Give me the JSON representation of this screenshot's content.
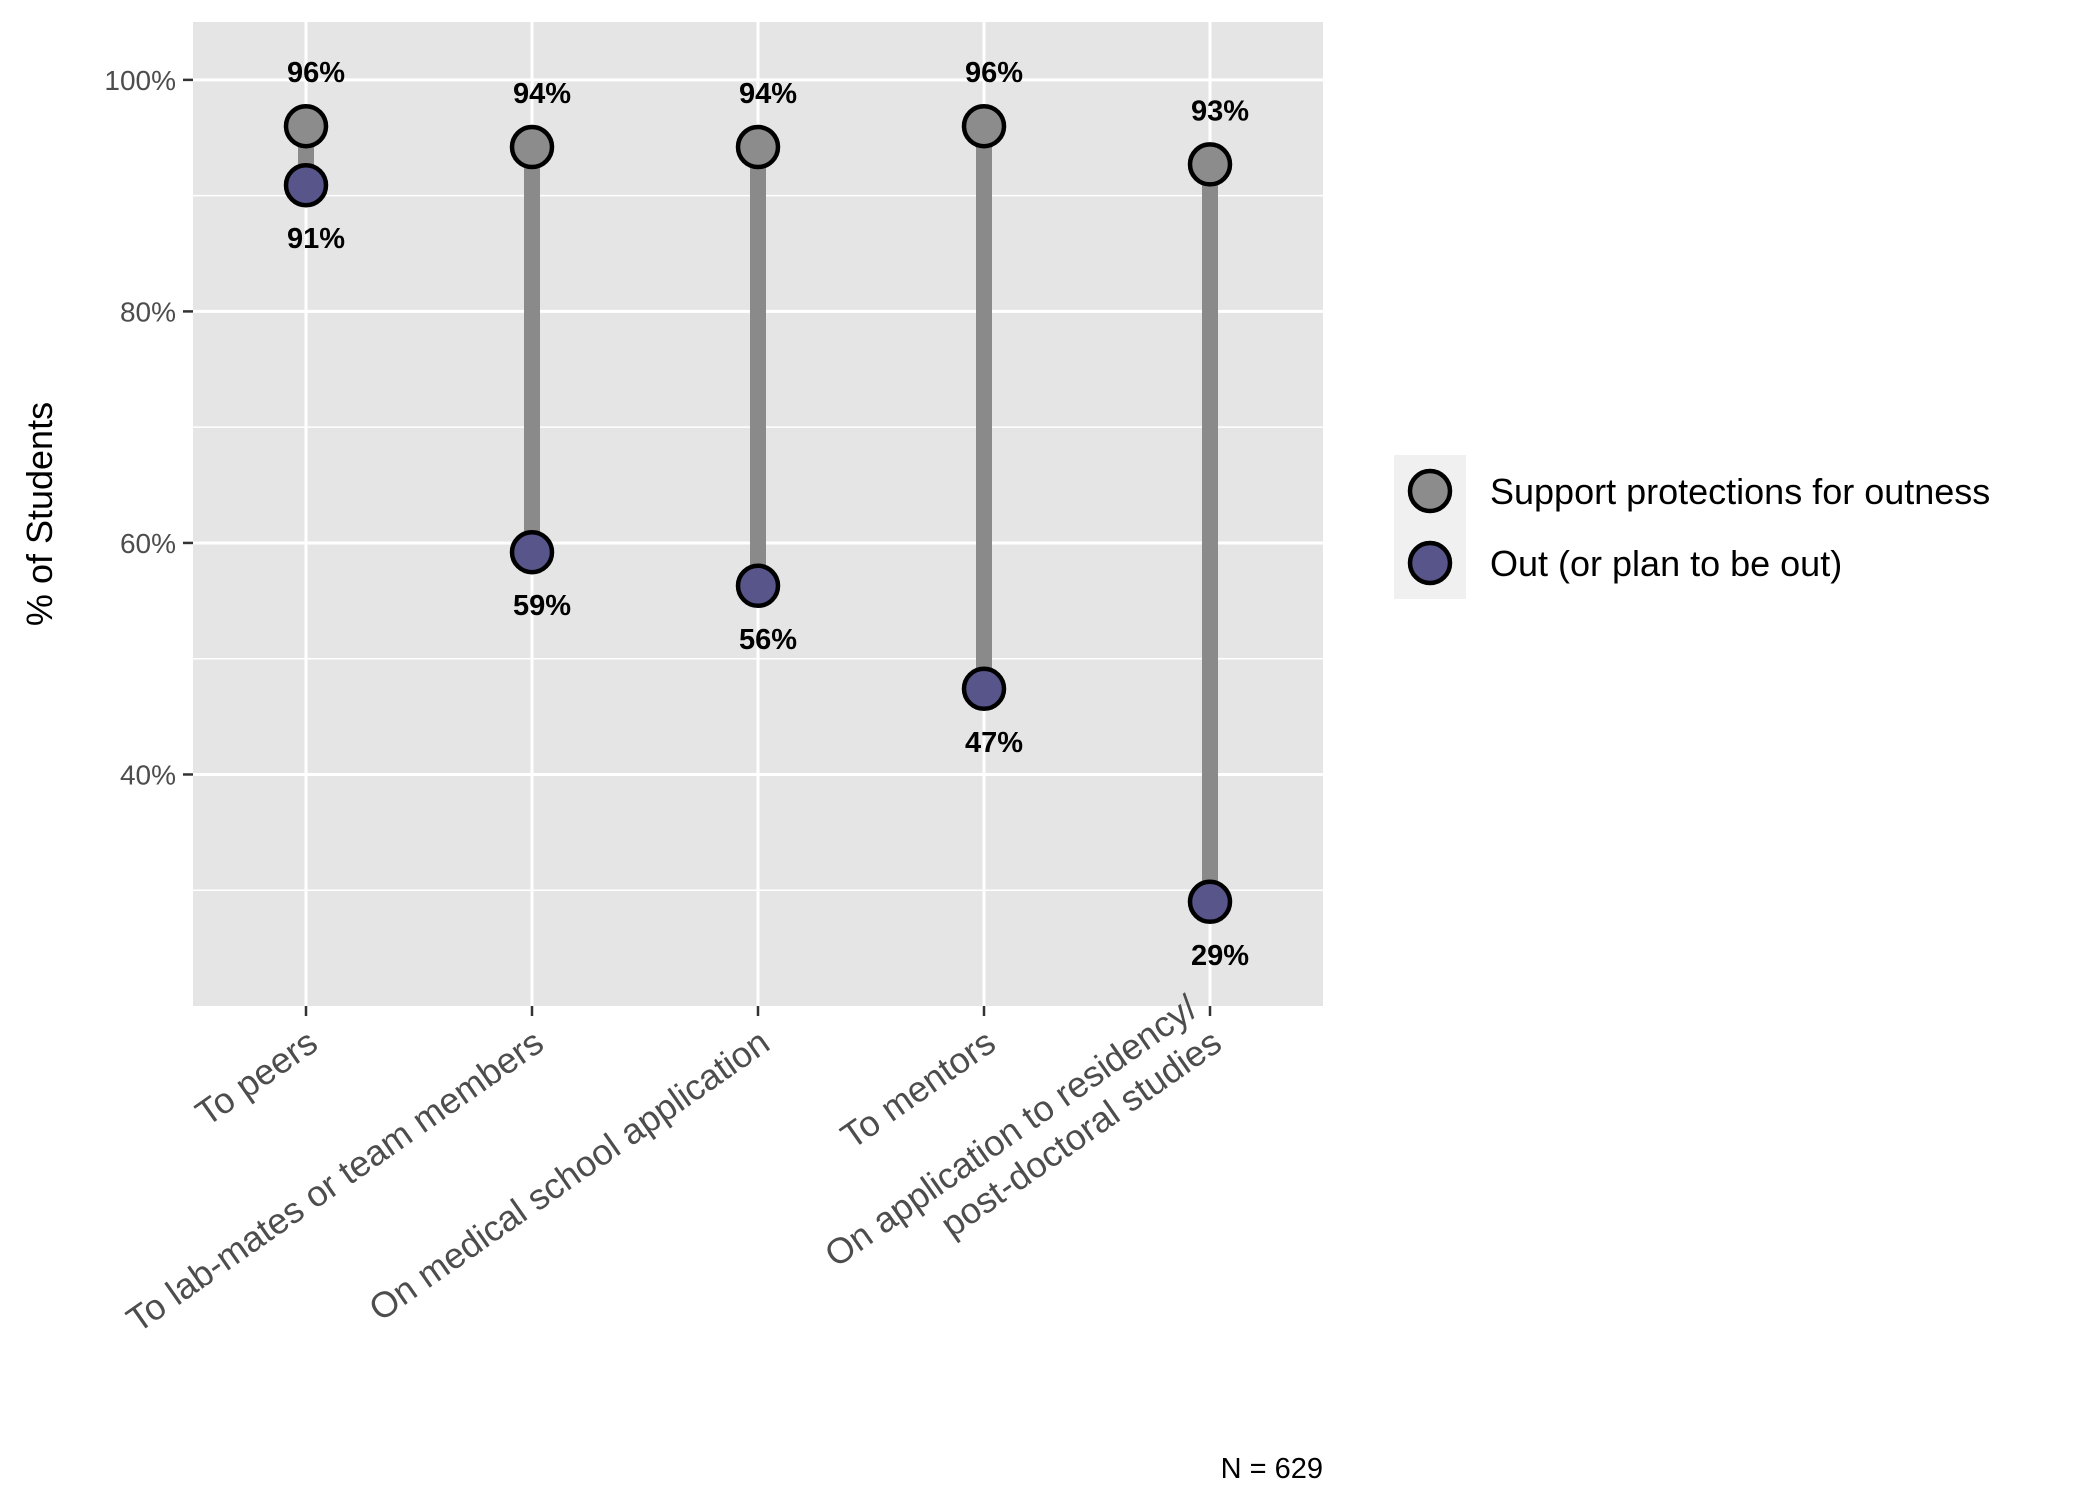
{
  "chart_data": {
    "type": "dumbbell",
    "ylabel": "% of Students",
    "ylim": [
      20,
      105
    ],
    "y_ticks": [
      40,
      60,
      80,
      100
    ],
    "y_tick_labels": [
      "40%",
      "60%",
      "80%",
      "100%"
    ],
    "grid": true,
    "legend_position": "right",
    "categories": [
      [
        "To peers"
      ],
      [
        "To lab-mates or team members"
      ],
      [
        "On medical school application"
      ],
      [
        "To mentors"
      ],
      [
        "On application to residency/",
        "post-doctoral studies"
      ]
    ],
    "series": [
      {
        "name": "Support protections for outness",
        "color": "#8c8c8c",
        "values": [
          96,
          94.2,
          94.2,
          96,
          92.7
        ],
        "labels": [
          "96%",
          "94%",
          "94%",
          "96%",
          "93%"
        ]
      },
      {
        "name": "Out (or plan to be out)",
        "color": "#58558a",
        "values": [
          90.9,
          59.2,
          56.3,
          47.4,
          29
        ],
        "labels": [
          "91%",
          "59%",
          "56%",
          "47%",
          "29%"
        ]
      }
    ],
    "caption": "N = 629"
  }
}
